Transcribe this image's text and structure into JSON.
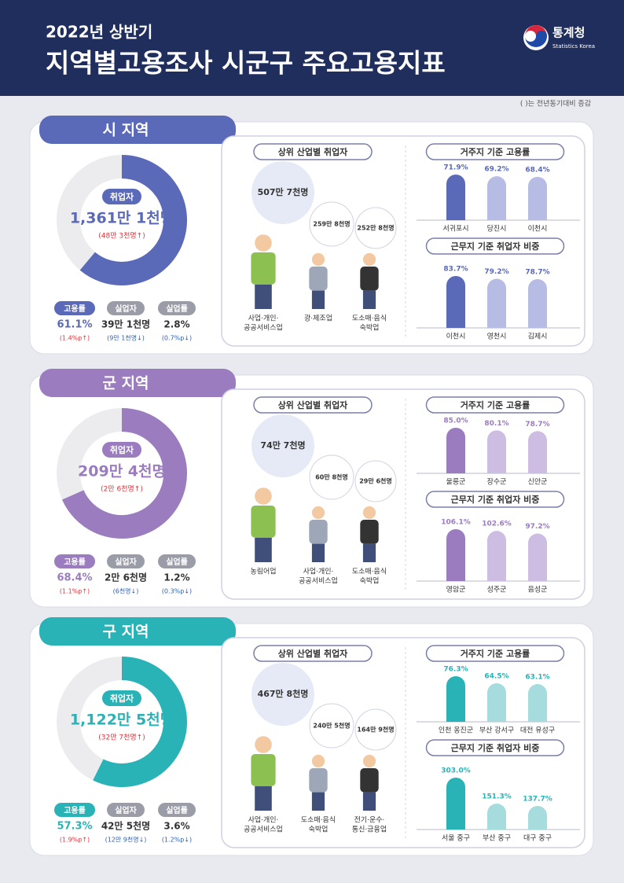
{
  "header": {
    "subtitle": "2022년 상반기",
    "title": "지역별고용조사 시군구 주요고용지표",
    "logo": "통계청",
    "logo_en": "Statistics Korea"
  },
  "note": "(   )는 전년동기대비 증감",
  "sections": [
    {
      "name": "시 지역",
      "color": "#5a69b8",
      "light": "#b6bce3",
      "employed": {
        "label": "취업자",
        "value": "1,361만 1천명",
        "change": "(48만 3천명↑)"
      },
      "employment_rate": {
        "label": "고용률",
        "value": 61.1,
        "value_label": "61.1%",
        "change": "(1.4%p↑)"
      },
      "others": [
        {
          "label": "실업자",
          "value": "39만 1천명",
          "change": "(9만 1천명↓)"
        },
        {
          "label": "실업률",
          "value": "2.8%",
          "change": "(0.7%p↓)"
        }
      ],
      "industries": {
        "title": "상위 산업별 취업자",
        "items": [
          {
            "name": [
              "사업·개인·",
              "공공서비스업"
            ],
            "count": "507만 7천명"
          },
          {
            "name": [
              "광·제조업"
            ],
            "count": "259만 8천명"
          },
          {
            "name": [
              "도소매·음식",
              "숙박업"
            ],
            "count": "252만 8천명"
          }
        ]
      },
      "charts": [
        {
          "title": "거주지 기준 고용률",
          "categories": [
            "서귀포시",
            "당진시",
            "이천시"
          ],
          "values": [
            71.9,
            69.2,
            68.4
          ],
          "value_labels": [
            "71.9%",
            "69.2%",
            "68.4%"
          ]
        },
        {
          "title": "근무지 기준 취업자 비중",
          "categories": [
            "이천시",
            "영천시",
            "김제시"
          ],
          "values": [
            83.7,
            79.2,
            78.7
          ],
          "value_labels": [
            "83.7%",
            "79.2%",
            "78.7%"
          ]
        }
      ]
    },
    {
      "name": "군 지역",
      "color": "#9a7cbf",
      "light": "#cdbde2",
      "employed": {
        "label": "취업자",
        "value": "209만 4천명",
        "change": "(2만 6천명↑)"
      },
      "employment_rate": {
        "label": "고용률",
        "value": 68.4,
        "value_label": "68.4%",
        "change": "(1.1%p↑)"
      },
      "others": [
        {
          "label": "실업자",
          "value": "2만 6천명",
          "change": "(6천명↓)"
        },
        {
          "label": "실업률",
          "value": "1.2%",
          "change": "(0.3%p↓)"
        }
      ],
      "industries": {
        "title": "상위 산업별 취업자",
        "items": [
          {
            "name": [
              "농림어업"
            ],
            "count": "74만 7천명"
          },
          {
            "name": [
              "사업·개인·",
              "공공서비스업"
            ],
            "count": "60만 8천명"
          },
          {
            "name": [
              "도소매·음식",
              "숙박업"
            ],
            "count": "29만 6천명"
          }
        ]
      },
      "charts": [
        {
          "title": "거주지 기준 고용률",
          "categories": [
            "울릉군",
            "장수군",
            "신안군"
          ],
          "values": [
            85.0,
            80.1,
            78.7
          ],
          "value_labels": [
            "85.0%",
            "80.1%",
            "78.7%"
          ]
        },
        {
          "title": "근무지 기준 취업자 비중",
          "categories": [
            "영암군",
            "성주군",
            "음성군"
          ],
          "values": [
            106.1,
            102.6,
            97.2
          ],
          "value_labels": [
            "106.1%",
            "102.6%",
            "97.2%"
          ]
        }
      ]
    },
    {
      "name": "구 지역",
      "color": "#2ab3b6",
      "light": "#a6dcdd",
      "employed": {
        "label": "취업자",
        "value": "1,122만 5천명",
        "change": "(32만 7천명↑)"
      },
      "employment_rate": {
        "label": "고용률",
        "value": 57.3,
        "value_label": "57.3%",
        "change": "(1.9%p↑)"
      },
      "others": [
        {
          "label": "실업자",
          "value": "42만 5천명",
          "change": "(12만 9천명↓)"
        },
        {
          "label": "실업률",
          "value": "3.6%",
          "change": "(1.2%p↓)"
        }
      ],
      "industries": {
        "title": "상위 산업별 취업자",
        "items": [
          {
            "name": [
              "사업·개인·",
              "공공서비스업"
            ],
            "count": "467만 8천명"
          },
          {
            "name": [
              "도소매·음식",
              "숙박업"
            ],
            "count": "240만 5천명"
          },
          {
            "name": [
              "전기·운수·",
              "통신·금융업"
            ],
            "count": "164만 9천명"
          }
        ]
      },
      "charts": [
        {
          "title": "거주지 기준 고용률",
          "categories": [
            "인천 옹진군",
            "부산 강서구",
            "대전 유성구"
          ],
          "values": [
            76.3,
            64.5,
            63.1
          ],
          "value_labels": [
            "76.3%",
            "64.5%",
            "63.1%"
          ]
        },
        {
          "title": "근무지 기준 취업자 비중",
          "categories": [
            "서울 중구",
            "부산 중구",
            "대구 중구"
          ],
          "values": [
            303.0,
            151.3,
            137.7
          ],
          "value_labels": [
            "303.0%",
            "151.3%",
            "137.7%"
          ]
        }
      ]
    }
  ]
}
